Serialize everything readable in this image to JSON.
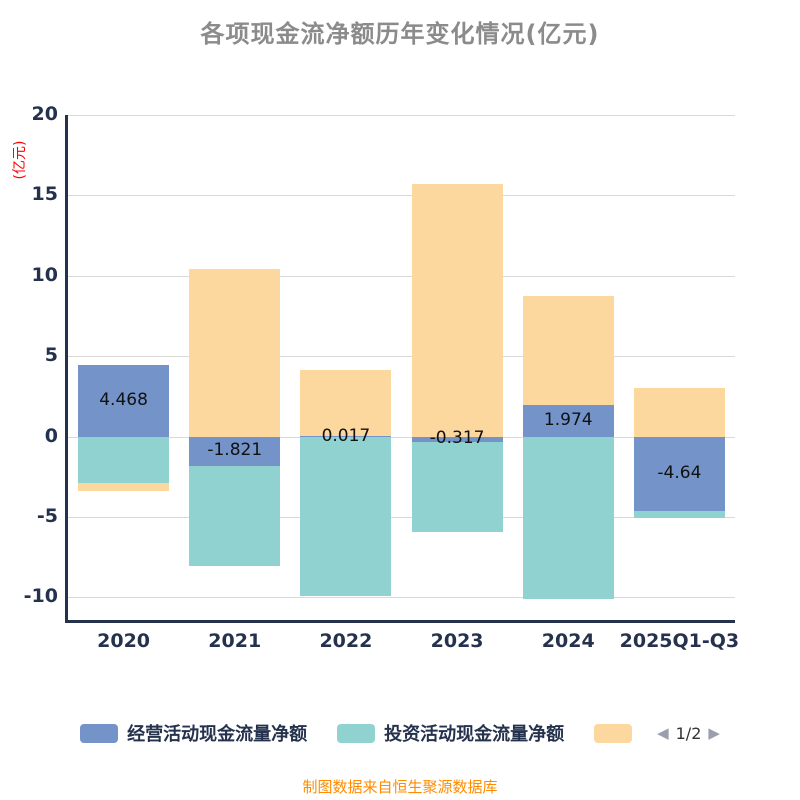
{
  "title": "各项现金流净额历年变化情况(亿元)",
  "caption": "制图数据来自恒生聚源数据库",
  "colors": {
    "operating": "#7493c8",
    "investing": "#8fd2d0",
    "financing": "#fcd79e",
    "axis": "#25324e",
    "grid": "#d9d9d9",
    "title": "#8b8b8b",
    "unit_label": "#ff0000",
    "caption": "#ff8c00",
    "bar_label": "#111111"
  },
  "chart_data": {
    "type": "bar",
    "stacked": true,
    "title": "各项现金流净额历年变化情况(亿元)",
    "ylabel": "(亿元)",
    "xlabel": "",
    "categories": [
      "2020",
      "2021",
      "2022",
      "2023",
      "2024",
      "2025Q1-Q3"
    ],
    "series": [
      {
        "name": "经营活动现金流量净额",
        "color": "#7493c8",
        "values": [
          4.468,
          -1.821,
          0.017,
          -0.317,
          1.974,
          -4.64
        ],
        "labels": [
          "4.468",
          "-1.821",
          "0.017",
          "-0.317",
          "1.974",
          "-4.64"
        ]
      },
      {
        "name": "投资活动现金流量净额",
        "color": "#8fd2d0",
        "values": [
          -2.9,
          -6.2,
          -9.9,
          -5.6,
          -10.1,
          -0.4
        ]
      },
      {
        "name": "",
        "color": "#fcd79e",
        "values": [
          -0.5,
          10.4,
          4.1,
          15.7,
          6.8,
          3.0
        ]
      }
    ],
    "yticks": [
      -10,
      -5,
      0,
      5,
      10,
      15,
      20
    ],
    "ylim": [
      -11.4,
      20
    ],
    "grid": true,
    "legend_position": "bottom"
  },
  "legend": {
    "items": [
      {
        "label": "经营活动现金流量净额",
        "color": "#7493c8"
      },
      {
        "label": "投资活动现金流量净额",
        "color": "#8fd2d0"
      },
      {
        "label": "",
        "color": "#fcd79e"
      }
    ],
    "pager": {
      "current": "1/2"
    }
  }
}
